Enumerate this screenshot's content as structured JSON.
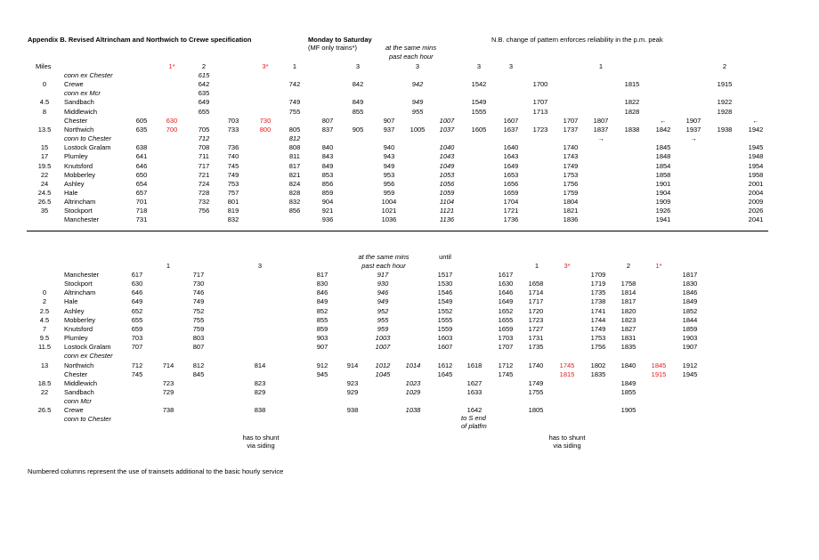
{
  "header": {
    "title": "Appendix B. Revised Altrincham and Northwich to Crewe specification",
    "days": "Monday to Saturday",
    "mf_note": "(MF only trains*)",
    "same_mins_1": "at the same mins",
    "same_mins_2": "past each hour",
    "nb": "N.B. change of pattern enforces reliability in the p.m. peak"
  },
  "colors": {
    "text": "#000000",
    "highlight": "#e0191a",
    "rule": "#000000"
  },
  "top_table": {
    "miles_header": "Miles",
    "columns": [
      "c1",
      "c2",
      "c3",
      "c4",
      "c5",
      "c6",
      "c7",
      "c8",
      "c9",
      "c10",
      "c11",
      "c12",
      "c13",
      "c14",
      "c15",
      "c16",
      "c17",
      "c18",
      "c19",
      "c20",
      "c21",
      "c22",
      "c23"
    ],
    "headers": {
      "c2": "1*",
      "c3": "2",
      "c5": "3*",
      "c6": "1",
      "c8": "3",
      "c10": "3",
      "c12": "3",
      "c14": "3",
      "c17": "1",
      "c22": "2"
    },
    "red_headers": [
      "c2",
      "c5"
    ],
    "notes": [
      {
        "text": "at the same mins",
        "col": "c9"
      },
      {
        "text": "past each hour",
        "col": "c9"
      }
    ],
    "rows": [
      {
        "miles": "",
        "station": "conn ex Chester",
        "italic": true,
        "cells": {
          "c3": "615"
        }
      },
      {
        "miles": "0",
        "station": "Crewe",
        "cells": {
          "c3": "642",
          "c6": "742",
          "c8": "842",
          "c10": "942",
          "c13": "1542",
          "c15": "1700",
          "c18": "1815",
          "c22": "1915"
        }
      },
      {
        "miles": "",
        "station": "conn ex Mcr",
        "italic": true,
        "cells": {
          "c3": "635"
        }
      },
      {
        "miles": "4.5",
        "station": "Sandbach",
        "cells": {
          "c3": "649",
          "c6": "749",
          "c8": "849",
          "c10": "949",
          "c13": "1549",
          "c15": "1707",
          "c18": "1822",
          "c22": "1922"
        }
      },
      {
        "miles": "8",
        "station": "Middlewich",
        "cells": {
          "c3": "655",
          "c6": "755",
          "c8": "855",
          "c10": "955",
          "c13": "1555",
          "c15": "1713",
          "c18": "1828",
          "c22": "1928"
        }
      },
      {
        "miles": "",
        "station": "Chester",
        "cells": {
          "c1": "605",
          "c2": "630",
          "c4": "703",
          "c5": "730",
          "c7": "807",
          "c9": "907",
          "c11": "1007",
          "c14": "1607",
          "c16": "1707",
          "c17": "1807",
          "c19": "←",
          "c20": "1907",
          "c23": "←"
        }
      },
      {
        "miles": "13.5",
        "station": "Northwich",
        "cells": {
          "c1": "635",
          "c2": "700",
          "c3": "705",
          "c4": "733",
          "c5": "800",
          "c6": "805",
          "c7": "837",
          "c8": "905",
          "c9": "937",
          "c10": "1005",
          "c11": "1037",
          "c12": "1605",
          "c14": "1637",
          "c15": "1723",
          "c16": "1737",
          "c17": "1837",
          "c18": "1838",
          "c19": "1842",
          "c20": "1937",
          "c21": "1938",
          "c23": "1942"
        }
      },
      {
        "miles": "",
        "station": "conn to Chester",
        "italic": true,
        "cells": {
          "c3": "712",
          "c6": "812",
          "c17": "→",
          "c20": "→"
        }
      },
      {
        "miles": "15",
        "station": "Lostock Gralam",
        "cells": {
          "c1": "638",
          "c3": "708",
          "c4": "736",
          "c6": "808",
          "c7": "840",
          "c9": "940",
          "c11": "1040",
          "c14": "1640",
          "c16": "1740",
          "c19": "1845",
          "c23": "1945"
        }
      },
      {
        "miles": "17",
        "station": "Plumley",
        "cells": {
          "c1": "641",
          "c3": "711",
          "c4": "740",
          "c6": "811",
          "c7": "843",
          "c9": "943",
          "c11": "1043",
          "c14": "1643",
          "c16": "1743",
          "c19": "1848",
          "c23": "1948"
        }
      },
      {
        "miles": "19.5",
        "station": "Knutsford",
        "cells": {
          "c1": "646",
          "c3": "717",
          "c4": "745",
          "c6": "817",
          "c7": "849",
          "c9": "949",
          "c11": "1049",
          "c14": "1649",
          "c16": "1749",
          "c19": "1854",
          "c23": "1954"
        }
      },
      {
        "miles": "22",
        "station": "Mobberley",
        "cells": {
          "c1": "650",
          "c3": "721",
          "c4": "749",
          "c6": "821",
          "c7": "853",
          "c9": "953",
          "c11": "1053",
          "c14": "1653",
          "c16": "1753",
          "c19": "1858",
          "c23": "1958"
        }
      },
      {
        "miles": "24",
        "station": "Ashley",
        "cells": {
          "c1": "654",
          "c3": "724",
          "c4": "753",
          "c6": "824",
          "c7": "856",
          "c9": "956",
          "c11": "1056",
          "c14": "1656",
          "c16": "1756",
          "c19": "1901",
          "c23": "2001"
        }
      },
      {
        "miles": "24.5",
        "station": "Hale",
        "cells": {
          "c1": "657",
          "c3": "728",
          "c4": "757",
          "c6": "828",
          "c7": "859",
          "c9": "959",
          "c11": "1059",
          "c14": "1659",
          "c16": "1759",
          "c19": "1904",
          "c23": "2004"
        }
      },
      {
        "miles": "26.5",
        "station": "Altrincham",
        "cells": {
          "c1": "701",
          "c3": "732",
          "c4": "801",
          "c6": "832",
          "c7": "904",
          "c9": "1004",
          "c11": "1104",
          "c14": "1704",
          "c16": "1804",
          "c19": "1909",
          "c23": "2009"
        }
      },
      {
        "miles": "35",
        "station": "Stockport",
        "cells": {
          "c1": "718",
          "c3": "756",
          "c4": "819",
          "c6": "856",
          "c7": "921",
          "c9": "1021",
          "c11": "1121",
          "c14": "1721",
          "c16": "1821",
          "c19": "1926",
          "c23": "2026"
        }
      },
      {
        "miles": "",
        "station": "Manchester",
        "cells": {
          "c1": "731",
          "c4": "832",
          "c7": "936",
          "c9": "1036",
          "c11": "1136",
          "c14": "1736",
          "c16": "1836",
          "c19": "1941",
          "c23": "2041"
        }
      }
    ],
    "red_cells": [
      [
        5,
        "c2"
      ],
      [
        5,
        "c5"
      ],
      [
        6,
        "c2"
      ],
      [
        6,
        "c5"
      ]
    ],
    "italic_cells": [
      [
        0,
        "c3"
      ],
      [
        1,
        "c10"
      ],
      [
        3,
        "c10"
      ],
      [
        4,
        "c10"
      ],
      [
        5,
        "c11"
      ],
      [
        6,
        "c11"
      ],
      [
        7,
        "c3"
      ],
      [
        7,
        "c6"
      ],
      [
        8,
        "c11"
      ],
      [
        9,
        "c11"
      ],
      [
        10,
        "c11"
      ],
      [
        11,
        "c11"
      ],
      [
        12,
        "c11"
      ],
      [
        13,
        "c11"
      ],
      [
        14,
        "c11"
      ],
      [
        15,
        "c11"
      ],
      [
        16,
        "c11"
      ]
    ]
  },
  "bottom_table": {
    "headers": {
      "d2": "1",
      "d4": "3",
      "d13": "1",
      "d14": "3*",
      "d16": "2",
      "d17": "1*"
    },
    "red_headers": [
      "d14",
      "d17"
    ],
    "notes": [
      {
        "text": "at the same mins",
        "col": "d7"
      },
      {
        "text": "past each hour",
        "col": "d7"
      },
      {
        "text": "until",
        "col": "d9"
      }
    ],
    "rows": [
      {
        "miles": "",
        "station": "Manchester",
        "cells": {
          "d1": "617",
          "d3": "717",
          "d5": "817",
          "d7": "917",
          "d9": "1517",
          "d11": "1617",
          "d15": "1709",
          "d18": "1817"
        }
      },
      {
        "miles": "",
        "station": "Stockport",
        "cells": {
          "d1": "630",
          "d3": "730",
          "d5": "830",
          "d7": "930",
          "d9": "1530",
          "d11": "1630",
          "d12": "1658",
          "d15": "1719",
          "d16": "1758",
          "d18": "1830"
        }
      },
      {
        "miles": "0",
        "station": "Altrincham",
        "cells": {
          "d1": "646",
          "d3": "746",
          "d5": "846",
          "d7": "946",
          "d9": "1546",
          "d11": "1646",
          "d12": "1714",
          "d15": "1735",
          "d16": "1814",
          "d18": "1846"
        }
      },
      {
        "miles": "2",
        "station": "Hale",
        "cells": {
          "d1": "649",
          "d3": "749",
          "d5": "849",
          "d7": "949",
          "d9": "1549",
          "d11": "1649",
          "d12": "1717",
          "d15": "1738",
          "d16": "1817",
          "d18": "1849"
        }
      },
      {
        "miles": "2.5",
        "station": "Ashley",
        "cells": {
          "d1": "652",
          "d3": "752",
          "d5": "852",
          "d7": "952",
          "d9": "1552",
          "d11": "1652",
          "d12": "1720",
          "d15": "1741",
          "d16": "1820",
          "d18": "1852"
        }
      },
      {
        "miles": "4.5",
        "station": "Mobberley",
        "cells": {
          "d1": "655",
          "d3": "755",
          "d5": "855",
          "d7": "955",
          "d9": "1555",
          "d11": "1655",
          "d12": "1723",
          "d15": "1744",
          "d16": "1823",
          "d18": "1844"
        }
      },
      {
        "miles": "7",
        "station": "Knutsford",
        "cells": {
          "d1": "659",
          "d3": "759",
          "d5": "859",
          "d7": "959",
          "d9": "1559",
          "d11": "1659",
          "d12": "1727",
          "d15": "1749",
          "d16": "1827",
          "d18": "1859"
        }
      },
      {
        "miles": "9.5",
        "station": "Plumley",
        "cells": {
          "d1": "703",
          "d3": "803",
          "d5": "903",
          "d7": "1003",
          "d9": "1603",
          "d11": "1703",
          "d12": "1731",
          "d15": "1753",
          "d16": "1831",
          "d18": "1903"
        }
      },
      {
        "miles": "11.5",
        "station": "Lostock Gralam",
        "cells": {
          "d1": "707",
          "d3": "807",
          "d5": "907",
          "d7": "1007",
          "d9": "1607",
          "d11": "1707",
          "d12": "1735",
          "d15": "1756",
          "d16": "1835",
          "d18": "1907"
        }
      },
      {
        "miles": "",
        "station": "conn ex Chester",
        "italic": true,
        "cells": {}
      },
      {
        "miles": "13",
        "station": "Northwich",
        "cells": {
          "d1": "712",
          "d2": "714",
          "d3": "812",
          "d4": "814",
          "d5": "912",
          "d6": "914",
          "d7": "1012",
          "d8": "1014",
          "d9": "1612",
          "d10": "1618",
          "d11": "1712",
          "d12": "1740",
          "d14": "1745",
          "d15": "1802",
          "d16": "1840",
          "d17": "1845",
          "d18": "1912"
        }
      },
      {
        "miles": "",
        "station": "Chester",
        "cells": {
          "d1": "745",
          "d3": "845",
          "d5": "945",
          "d7": "1045",
          "d9": "1645",
          "d11": "1745",
          "d14": "1815",
          "d15": "1835",
          "d17": "1915",
          "d18": "1945"
        }
      },
      {
        "miles": "18.5",
        "station": "Middlewich",
        "cells": {
          "d2": "723",
          "d4": "823",
          "d6": "923",
          "d8": "1023",
          "d10": "1627",
          "d12": "1749",
          "d16": "1849"
        }
      },
      {
        "miles": "22",
        "station": "Sandbach",
        "cells": {
          "d2": "729",
          "d4": "829",
          "d6": "929",
          "d8": "1029",
          "d10": "1633",
          "d12": "1755",
          "d16": "1855"
        }
      },
      {
        "miles": "",
        "station": "conn Mcr",
        "italic": true,
        "cells": {}
      },
      {
        "miles": "26.5",
        "station": "Crewe",
        "cells": {
          "d2": "738",
          "d4": "838",
          "d6": "938",
          "d8": "1038",
          "d10": "1642",
          "d12": "1805",
          "d16": "1905"
        }
      },
      {
        "miles": "",
        "station": "conn to Chester",
        "italic": true,
        "cells": {}
      }
    ],
    "red_cells": [
      [
        10,
        "d14"
      ],
      [
        10,
        "d17"
      ],
      [
        11,
        "d14"
      ],
      [
        11,
        "d17"
      ]
    ],
    "italic_col": "d7_d8",
    "shunt_left_1": "has to shunt",
    "shunt_left_2": "via siding",
    "shunt_right_1": "has to shunt",
    "shunt_right_2": "via siding",
    "platform_1": "to S end",
    "platform_2": "of platfm"
  },
  "footer": "Numbered columns represent the use of trainsets additional to the basic hourly service"
}
